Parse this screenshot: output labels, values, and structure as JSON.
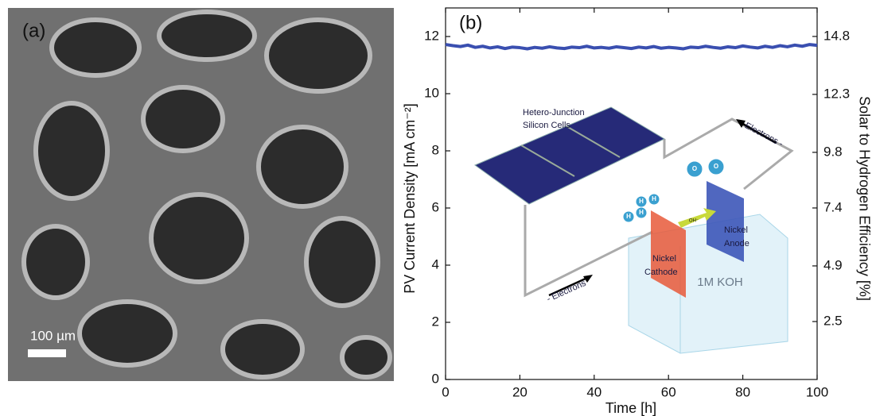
{
  "panel_a": {
    "label": "(a)",
    "scale_bar": "100 µm"
  },
  "chart_data": {
    "type": "line",
    "label": "(b)",
    "x_label": "Time [h]",
    "y_label": "PV Current Density [mA cm⁻²]",
    "y2_label": "Solar to Hydrogen Efficiency [%]",
    "x": [
      0,
      2,
      4,
      6,
      8,
      10,
      12,
      14,
      16,
      18,
      20,
      22,
      24,
      26,
      28,
      30,
      32,
      34,
      36,
      38,
      40,
      42,
      44,
      46,
      48,
      50,
      52,
      54,
      56,
      58,
      60,
      62,
      64,
      66,
      68,
      70,
      72,
      74,
      76,
      78,
      80,
      82,
      84,
      86,
      88,
      90,
      92,
      94,
      96,
      98,
      100
    ],
    "series": [
      {
        "color": "#3a4fb0",
        "values": [
          11.72,
          11.68,
          11.65,
          11.7,
          11.62,
          11.66,
          11.6,
          11.64,
          11.58,
          11.63,
          11.61,
          11.57,
          11.62,
          11.59,
          11.64,
          11.6,
          11.58,
          11.63,
          11.61,
          11.66,
          11.6,
          11.62,
          11.59,
          11.64,
          11.61,
          11.58,
          11.63,
          11.6,
          11.65,
          11.59,
          11.62,
          11.6,
          11.57,
          11.63,
          11.61,
          11.66,
          11.62,
          11.59,
          11.64,
          11.61,
          11.67,
          11.63,
          11.6,
          11.66,
          11.62,
          11.68,
          11.64,
          11.7,
          11.66,
          11.72,
          11.69
        ]
      }
    ],
    "xlim": [
      0,
      100
    ],
    "xticks": [
      0,
      20,
      40,
      60,
      80,
      100
    ],
    "ylim": [
      0,
      13
    ],
    "yticks": [
      0,
      2,
      4,
      6,
      8,
      10,
      12
    ],
    "y2lim": [
      0,
      16.03
    ],
    "y2ticks": [
      2.5,
      4.9,
      7.4,
      9.8,
      12.3,
      14.8
    ]
  },
  "inset": {
    "panel_line1": "Hetero-Junction",
    "panel_line2": "Silicon Cells",
    "electrons_bottom": "- Electrons",
    "electrons_top": "Electrons -",
    "cathode_line1": "Nickel",
    "cathode_line2": "Cathode",
    "anode_line1": "Nickel",
    "anode_line2": "Anode",
    "electrolyte": "1M KOH",
    "hydrogen": "H",
    "oxygen": "O",
    "hydroxide": "OH⁻"
  }
}
